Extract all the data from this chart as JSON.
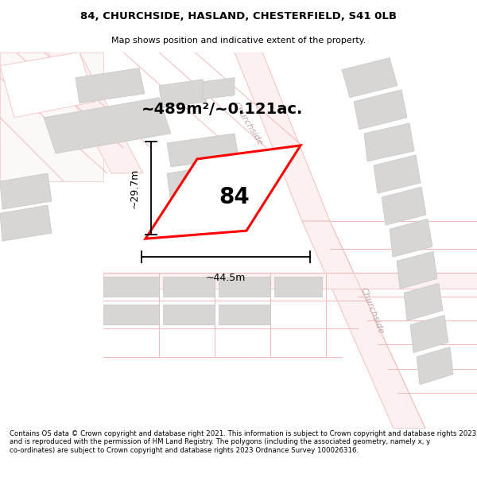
{
  "title": "84, CHURCHSIDE, HASLAND, CHESTERFIELD, S41 0LB",
  "subtitle": "Map shows position and indicative extent of the property.",
  "footer": "Contains OS data © Crown copyright and database right 2021. This information is subject to Crown copyright and database rights 2023 and is reproduced with the permission of HM Land Registry. The polygons (including the associated geometry, namely x, y co-ordinates) are subject to Crown copyright and database rights 2023 Ordnance Survey 100026316.",
  "area_label": "~489m²/~0.121ac.",
  "width_label": "~44.5m",
  "height_label": "~29.7m",
  "plot_number": "84",
  "bg_color": "#ffffff",
  "map_bg": "#ffffff",
  "plot_color": "#ff0000",
  "road_color": "#f2b8b8",
  "building_color": "#d8d5d5",
  "building_edge": "#c8c5c5",
  "text_color": "#000000",
  "road_label_color": "#c0a0a0"
}
